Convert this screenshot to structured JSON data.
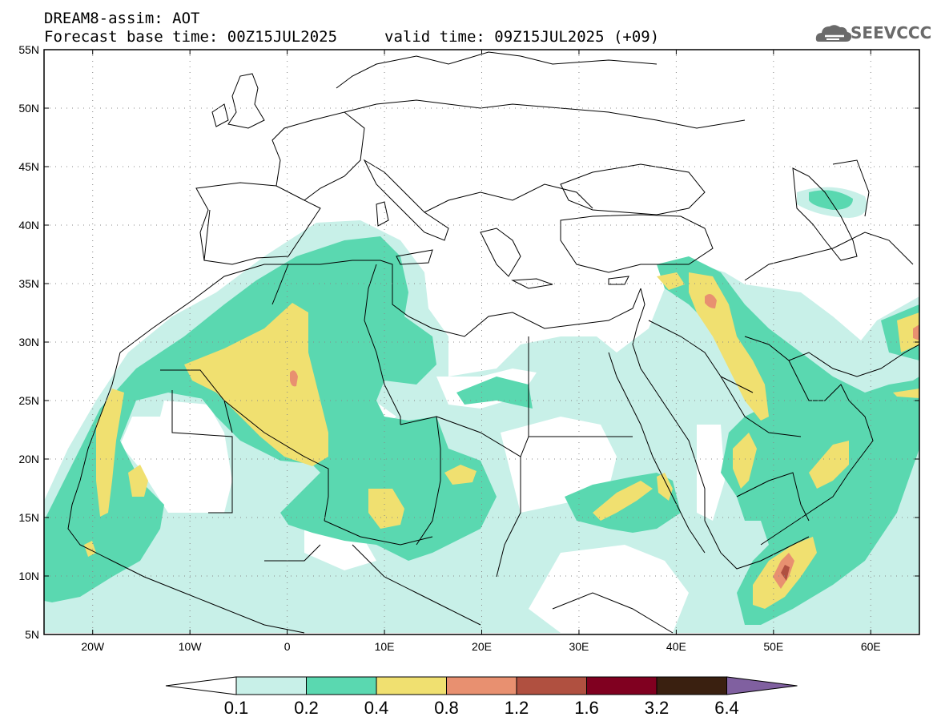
{
  "header": {
    "title": "DREAM8-assim: AOT",
    "forecast_base": "Forecast base time: 00Z15JUL2025",
    "valid_time": "valid time: 09Z15JUL2025 (+09)",
    "logo_text": "SEEVCCC"
  },
  "map": {
    "lon_range": [
      -25,
      65
    ],
    "lat_range": [
      5,
      55
    ],
    "lat_ticks": [
      "55N",
      "50N",
      "45N",
      "40N",
      "35N",
      "30N",
      "25N",
      "20N",
      "15N",
      "10N",
      "5N"
    ],
    "lon_ticks": [
      "20W",
      "10W",
      "0",
      "10E",
      "20E",
      "30E",
      "40E",
      "50E",
      "60E"
    ],
    "lat_tick_values": [
      55,
      50,
      45,
      40,
      35,
      30,
      25,
      20,
      15,
      10,
      5
    ],
    "lon_tick_values": [
      -20,
      -10,
      0,
      10,
      20,
      30,
      40,
      50,
      60
    ]
  },
  "colorbar": {
    "labels": [
      "0.1",
      "0.2",
      "0.4",
      "0.8",
      "1.2",
      "1.6",
      "3.2",
      "6.4"
    ],
    "colors": [
      "#c8f0e8",
      "#5ad8b0",
      "#f0e070",
      "#e89070",
      "#b05040",
      "#800020",
      "#3a2010",
      "#8060a0"
    ],
    "under_color": "#ffffff",
    "over_color": "#8060a0"
  },
  "colors": {
    "aot_01": "#c8f0e8",
    "aot_02": "#5ad8b0",
    "aot_04": "#f0e070",
    "aot_08": "#e89070",
    "border": "#000000"
  }
}
